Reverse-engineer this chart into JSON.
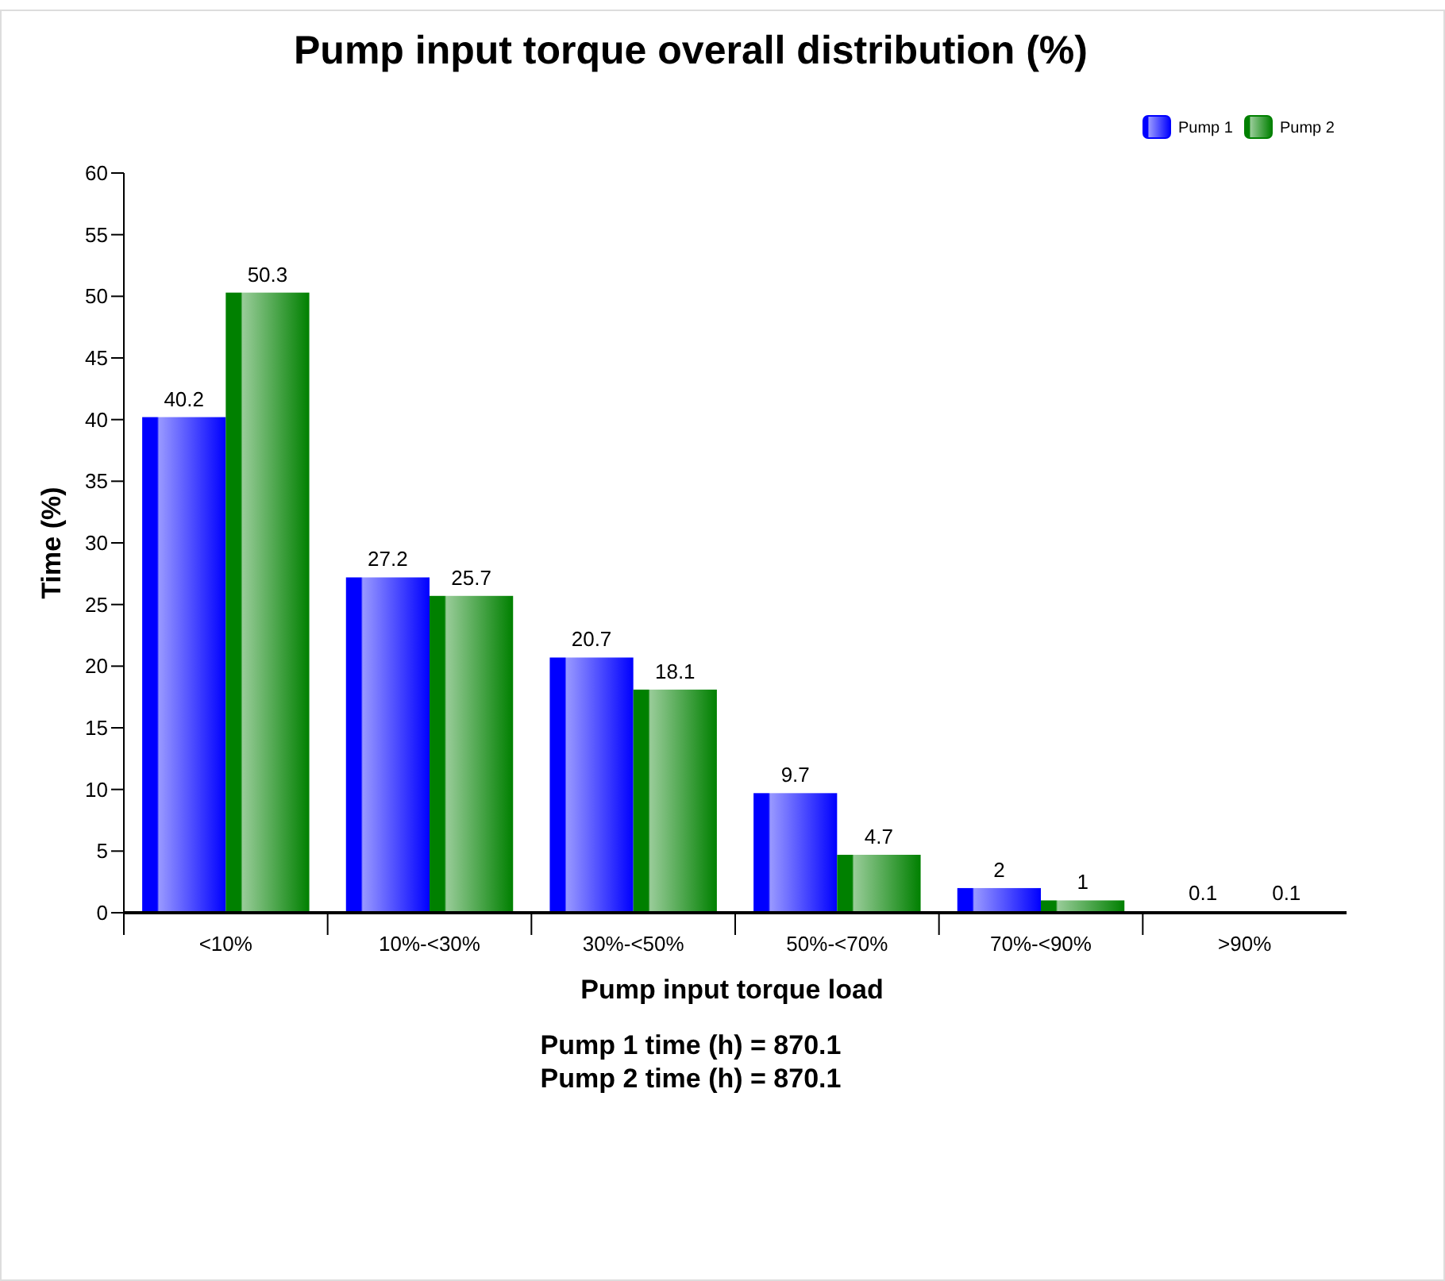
{
  "chart_data": {
    "type": "bar",
    "title": "Pump input torque overall distribution (%)",
    "xlabel": "Pump input torque load",
    "ylabel": "Time (%)",
    "categories": [
      "<10%",
      "10%-<30%",
      "30%-<50%",
      "50%-<70%",
      "70%-<90%",
      ">90%"
    ],
    "series": [
      {
        "name": "Pump 1",
        "color": "#0000ff",
        "values": [
          40.2,
          27.2,
          20.7,
          9.7,
          2,
          0.1
        ]
      },
      {
        "name": "Pump 2",
        "color": "#008000",
        "values": [
          50.3,
          25.7,
          18.1,
          4.7,
          1,
          0.1
        ]
      }
    ],
    "ylim": [
      0,
      60
    ],
    "yticks": [
      0,
      5,
      10,
      15,
      20,
      25,
      30,
      35,
      40,
      45,
      50,
      55,
      60
    ],
    "data_labels": true,
    "legend": "top right",
    "grid": false,
    "annotations": [
      "Pump 1 time (h) = 870.1",
      "Pump 2 time (h) = 870.1"
    ]
  }
}
